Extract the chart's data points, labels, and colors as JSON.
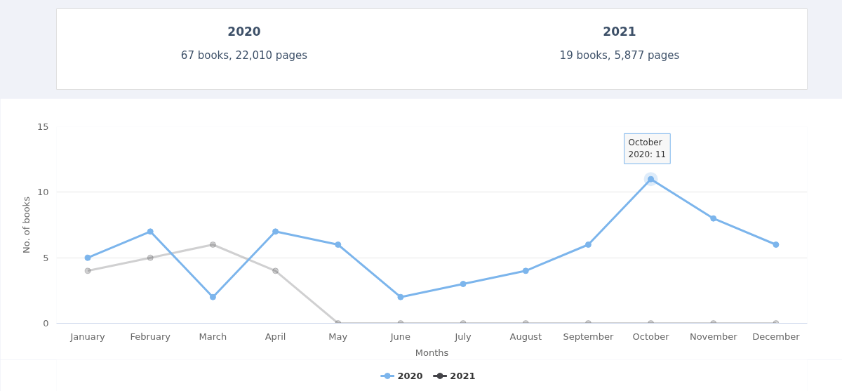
{
  "chart_data": [
    {
      "type": "other",
      "annotations": [
        "2020",
        "67 books, 22,010 pages",
        "2021",
        "19 books, 5,877 pages"
      ]
    },
    {
      "type": "line",
      "xlabel": "Months",
      "ylabel": "No. of books",
      "categories": [
        "January",
        "February",
        "March",
        "April",
        "May",
        "June",
        "July",
        "August",
        "September",
        "October",
        "November",
        "December"
      ],
      "series": [
        {
          "name": "2020",
          "color": "#7cb5ec",
          "values": [
            5,
            7,
            2,
            7,
            6,
            2,
            3,
            4,
            6,
            11,
            8,
            6
          ]
        },
        {
          "name": "2021",
          "color": "#434348",
          "values": [
            4,
            5,
            6,
            4,
            0,
            0,
            0,
            0,
            0,
            0,
            0,
            0
          ]
        }
      ],
      "ylim": [
        0,
        15
      ],
      "yticks": [
        0,
        5,
        10,
        15
      ],
      "grid": "y",
      "legend": "bottom",
      "marker": "circle",
      "line_style": "solid",
      "annotations": [
        {
          "text": "October\n2020: 11",
          "x": "October",
          "y": 11
        }
      ]
    }
  ]
}
